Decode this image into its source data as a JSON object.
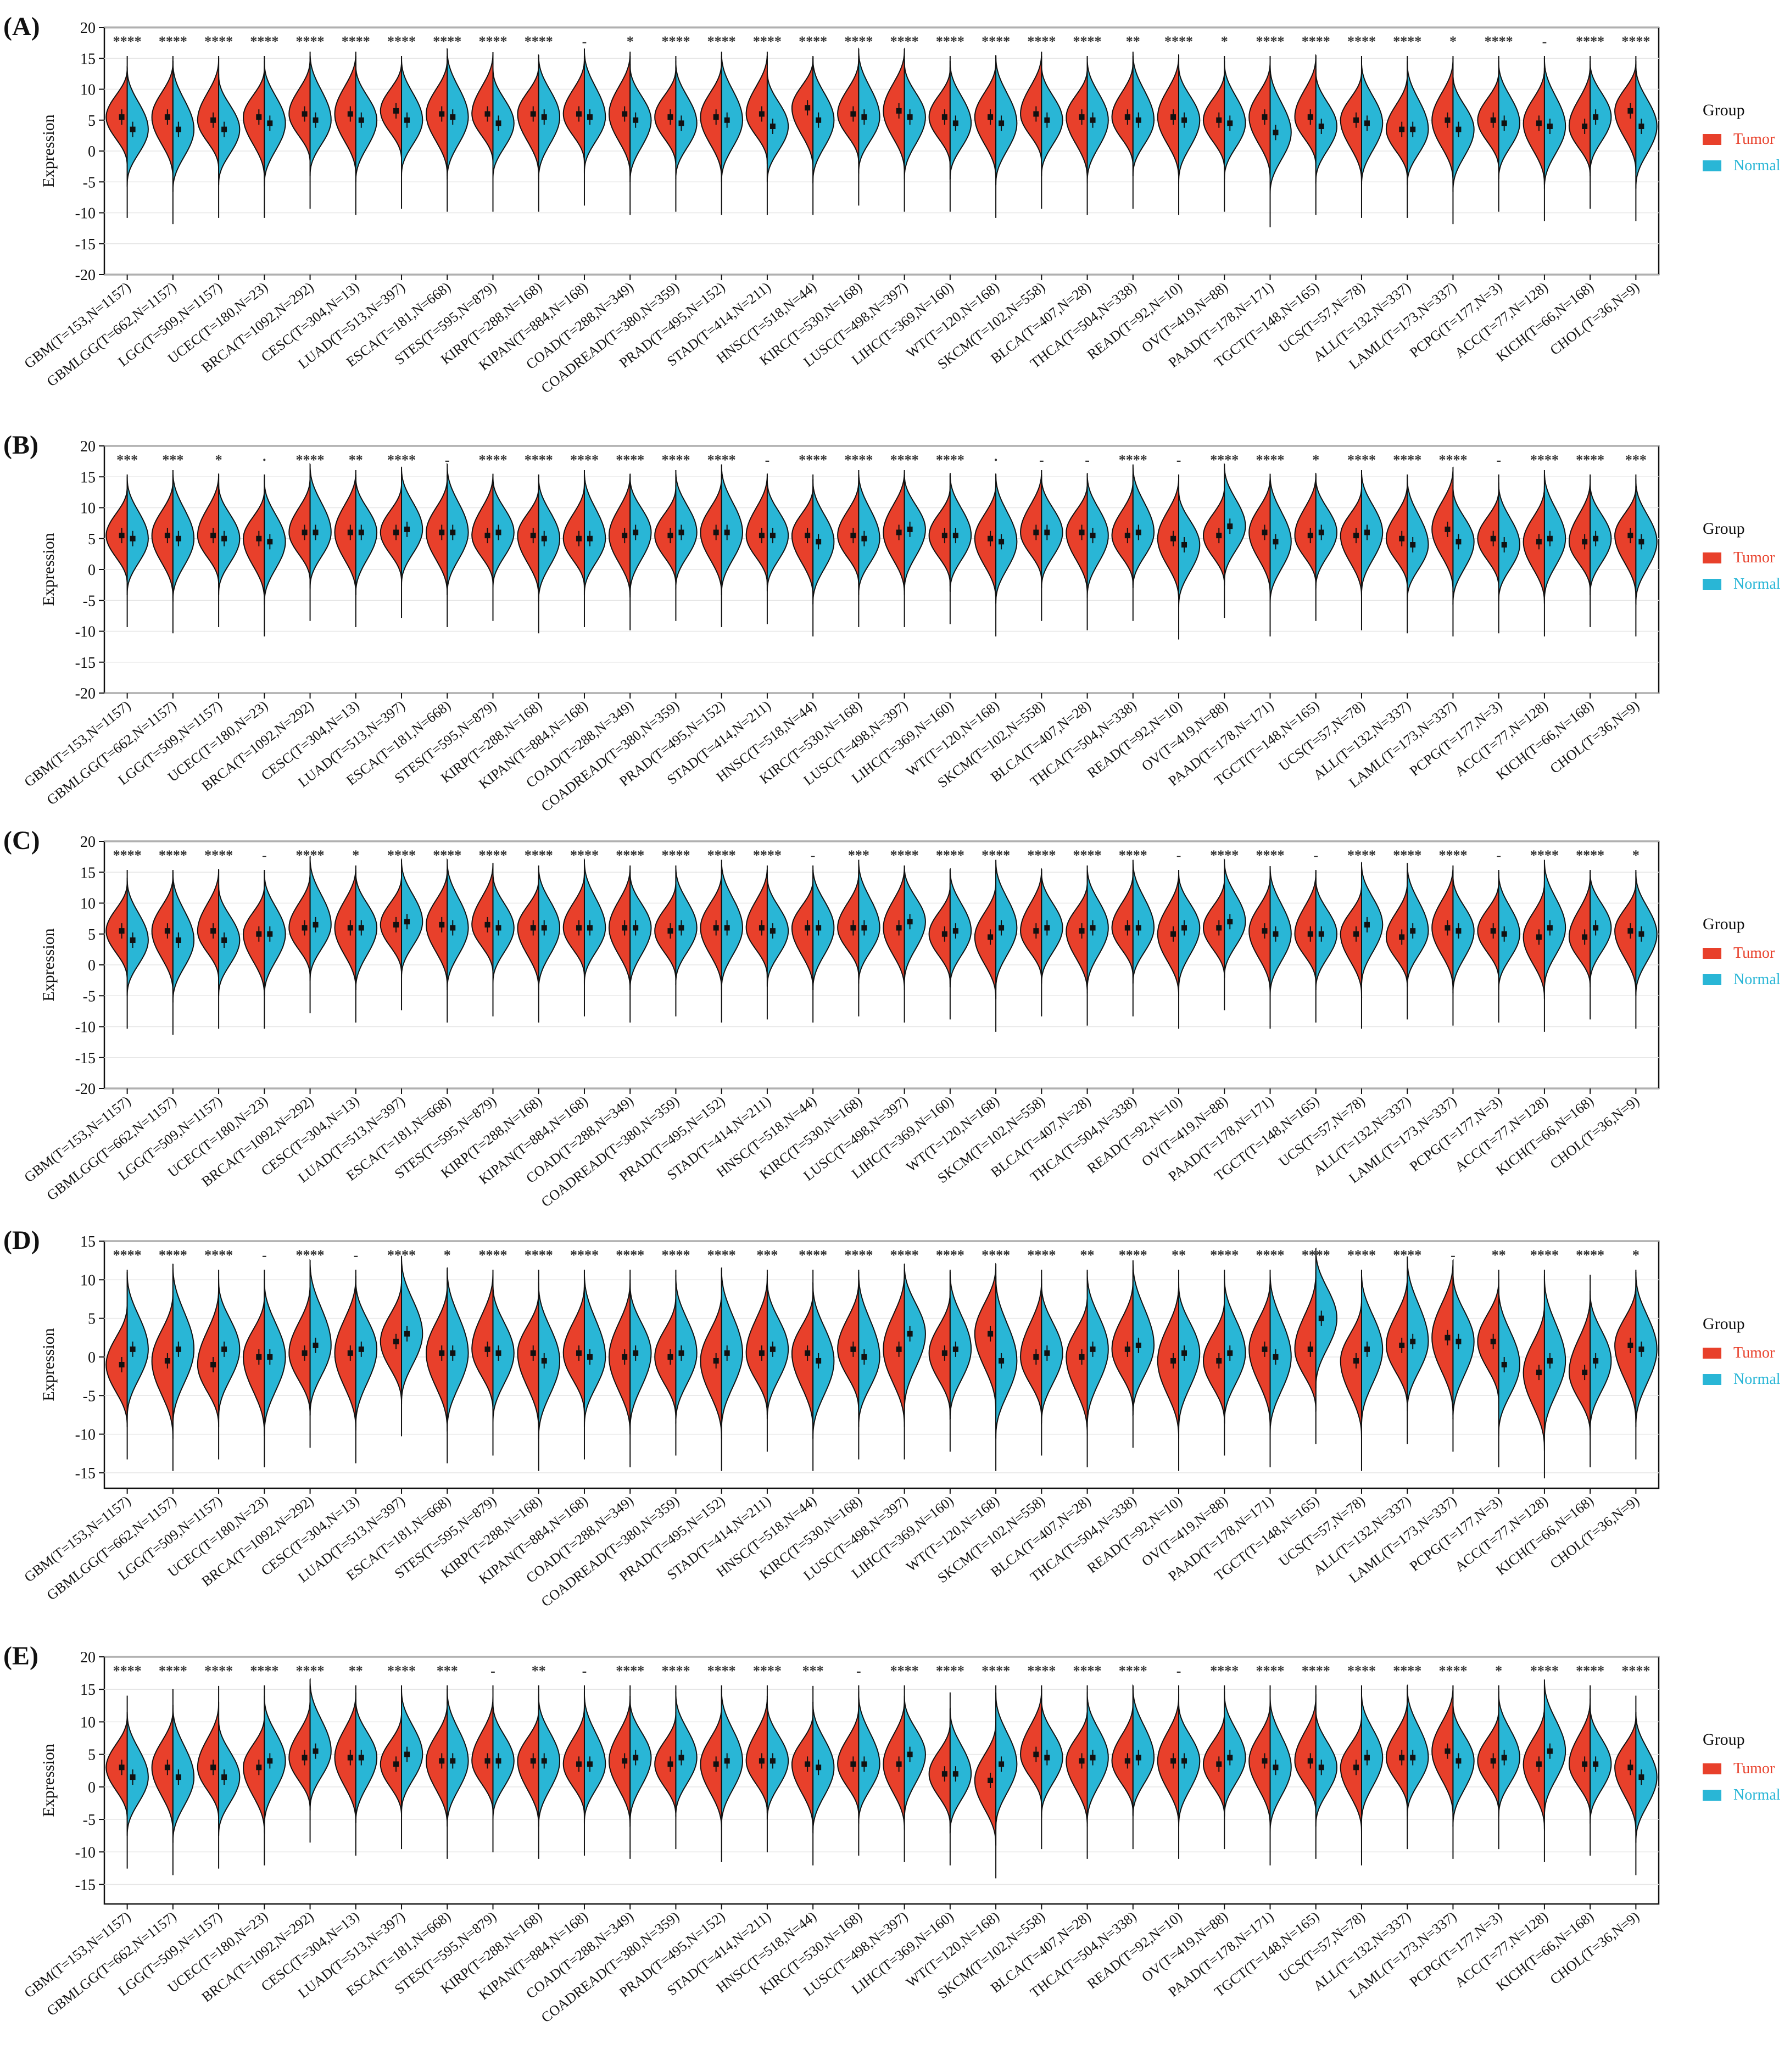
{
  "colors": {
    "tumor": "#E8402B",
    "normal": "#29B6D6",
    "frame": "#111111",
    "grid": "#e6e6e6",
    "text": "#111111"
  },
  "legend_title": "Group",
  "legend_labels": [
    "Tumor",
    "Normal"
  ],
  "categories": [
    "GBM(T=153,N=1157)",
    "GBMLGG(T=662,N=1157)",
    "LGG(T=509,N=1157)",
    "UCEC(T=180,N=23)",
    "BRCA(T=1092,N=292)",
    "CESC(T=304,N=13)",
    "LUAD(T=513,N=397)",
    "ESCA(T=181,N=668)",
    "STES(T=595,N=879)",
    "KIRP(T=288,N=168)",
    "KIPAN(T=884,N=168)",
    "COAD(T=288,N=349)",
    "COADREAD(T=380,N=359)",
    "PRAD(T=495,N=152)",
    "STAD(T=414,N=211)",
    "HNSC(T=518,N=44)",
    "KIRC(T=530,N=168)",
    "LUSC(T=498,N=397)",
    "LIHC(T=369,N=160)",
    "WT(T=120,N=168)",
    "SKCM(T=102,N=558)",
    "BLCA(T=407,N=28)",
    "THCA(T=504,N=338)",
    "READ(T=92,N=10)",
    "OV(T=419,N=88)",
    "PAAD(T=178,N=171)",
    "TGCT(T=148,N=165)",
    "UCS(T=57,N=78)",
    "ALL(T=132,N=337)",
    "LAML(T=173,N=337)",
    "PCPG(T=177,N=3)",
    "ACC(T=77,N=128)",
    "KICH(T=66,N=168)",
    "CHOL(T=36,N=9)"
  ],
  "panels": [
    {
      "label": "(A)",
      "chart_data": {
        "type": "split-violin",
        "ylabel": "Expression",
        "ylim": [
          -20,
          20
        ],
        "yticks": [
          -20,
          -15,
          -10,
          -5,
          0,
          5,
          10,
          15,
          20
        ],
        "series": [
          {
            "name": "Tumor",
            "medians": [
              5.5,
              5.5,
              5,
              5.5,
              6,
              6,
              6.5,
              6,
              6,
              6,
              6,
              6,
              5.5,
              5.5,
              6,
              7,
              6,
              6.5,
              5.5,
              5.5,
              6,
              5.5,
              5.5,
              5.5,
              5,
              5.5,
              5.5,
              5,
              3.5,
              5,
              5,
              4.5,
              4,
              6.5
            ]
          },
          {
            "name": "Normal",
            "medians": [
              3.5,
              3.5,
              3.5,
              4.5,
              5,
              5,
              5,
              5.5,
              4.5,
              5.5,
              5.5,
              5,
              4.5,
              5,
              4,
              5,
              5.5,
              5.5,
              4.5,
              4.5,
              5,
              5,
              5,
              5,
              4.5,
              3,
              4,
              4.5,
              3.5,
              3.5,
              4.5,
              4,
              5.5,
              4
            ]
          }
        ],
        "significance": [
          "****",
          "****",
          "****",
          "****",
          "****",
          "****",
          "****",
          "****",
          "****",
          "****",
          "-",
          "*",
          "****",
          "****",
          "****",
          "****",
          "****",
          "****",
          "****",
          "****",
          "****",
          "****",
          "**",
          "****",
          "*",
          "****",
          "****",
          "****",
          "****",
          "*",
          "****",
          "-",
          "****",
          "****"
        ]
      }
    },
    {
      "label": "(B)",
      "chart_data": {
        "type": "split-violin",
        "ylabel": "Expression",
        "ylim": [
          -20,
          20
        ],
        "yticks": [
          -20,
          -15,
          -10,
          -5,
          0,
          5,
          10,
          15,
          20
        ],
        "series": [
          {
            "name": "Tumor",
            "medians": [
              5.5,
              5.5,
              5.5,
              5,
              6,
              6,
              6,
              6,
              5.5,
              5.5,
              5,
              5.5,
              5.5,
              6,
              5.5,
              5.5,
              5.5,
              6,
              5.5,
              5,
              6,
              6,
              5.5,
              5,
              5.5,
              6,
              5.5,
              5.5,
              5,
              6.5,
              5,
              4.5,
              4.5,
              5.5
            ]
          },
          {
            "name": "Normal",
            "medians": [
              5,
              5,
              5,
              4.5,
              6,
              6,
              6.5,
              6,
              6,
              5,
              5,
              6,
              6,
              6,
              5.5,
              4.5,
              5,
              6.5,
              5.5,
              4.5,
              6,
              5.5,
              6,
              4,
              7,
              4.5,
              6,
              6,
              4,
              4.5,
              4,
              5,
              5,
              4.5
            ]
          }
        ],
        "significance": [
          "***",
          "***",
          "*",
          "·",
          "****",
          "**",
          "****",
          "-",
          "****",
          "****",
          "****",
          "****",
          "****",
          "****",
          "-",
          "****",
          "****",
          "****",
          "****",
          "·",
          "-",
          "-",
          "****",
          "-",
          "****",
          "****",
          "*",
          "****",
          "****",
          "****",
          "-",
          "****",
          "****",
          "***"
        ]
      }
    },
    {
      "label": "(C)",
      "chart_data": {
        "type": "split-violin",
        "ylabel": "Expression",
        "ylim": [
          -20,
          20
        ],
        "yticks": [
          -20,
          -15,
          -10,
          -5,
          0,
          5,
          10,
          15,
          20
        ],
        "series": [
          {
            "name": "Tumor",
            "medians": [
              5.5,
              5.5,
              5.5,
              5,
              6,
              6,
              6.5,
              6.5,
              6.5,
              6,
              6,
              6,
              5.5,
              6,
              6,
              6,
              6,
              6,
              5,
              4.5,
              5.5,
              5.5,
              6,
              5,
              6,
              5.5,
              5,
              5,
              4.5,
              6,
              5.5,
              4.5,
              4.5,
              5.5
            ]
          },
          {
            "name": "Normal",
            "medians": [
              4,
              4,
              4,
              5,
              6.5,
              6,
              7,
              6,
              6,
              6,
              6,
              6,
              6,
              6,
              5.5,
              6,
              6,
              7,
              5.5,
              6,
              6,
              6,
              6,
              6,
              7,
              5,
              5,
              6.5,
              5.5,
              5.5,
              5,
              6,
              6,
              5
            ]
          }
        ],
        "significance": [
          "****",
          "****",
          "****",
          "-",
          "****",
          "*",
          "****",
          "****",
          "****",
          "****",
          "****",
          "****",
          "****",
          "****",
          "****",
          "-",
          "***",
          "****",
          "****",
          "****",
          "****",
          "****",
          "****",
          "-",
          "****",
          "****",
          "-",
          "****",
          "****",
          "****",
          "-",
          "****",
          "****",
          "*"
        ]
      }
    },
    {
      "label": "(D)",
      "chart_data": {
        "type": "split-violin",
        "ylabel": "Expression",
        "ylim": [
          -17,
          15
        ],
        "yticks": [
          -15,
          -10,
          -5,
          0,
          5,
          10,
          15
        ],
        "series": [
          {
            "name": "Tumor",
            "medians": [
              -1,
              -0.5,
              -1,
              0,
              0.5,
              0.5,
              2,
              0.5,
              1,
              0.5,
              0.5,
              0,
              0,
              -0.5,
              0.5,
              0.5,
              1,
              1,
              0.5,
              3,
              0,
              0,
              1,
              -0.5,
              -0.5,
              1,
              1,
              -0.5,
              1.5,
              2.5,
              2,
              -2,
              -2,
              1.5
            ]
          },
          {
            "name": "Normal",
            "medians": [
              1,
              1,
              1,
              0,
              1.5,
              1,
              3,
              0.5,
              0.5,
              -0.5,
              0,
              0.5,
              0.5,
              0.5,
              1,
              -0.5,
              0,
              3,
              1,
              -0.5,
              0.5,
              1,
              1.5,
              0.5,
              0.5,
              0,
              5,
              1,
              2,
              2,
              -1,
              -0.5,
              -0.5,
              1
            ]
          }
        ],
        "significance": [
          "****",
          "****",
          "****",
          "-",
          "****",
          "-",
          "****",
          "*",
          "****",
          "****",
          "****",
          "****",
          "****",
          "****",
          "***",
          "****",
          "****",
          "****",
          "****",
          "****",
          "****",
          "**",
          "****",
          "**",
          "****",
          "****",
          "****",
          "****",
          "****",
          "-",
          "**",
          "****",
          "****",
          "*"
        ]
      }
    },
    {
      "label": "(E)",
      "chart_data": {
        "type": "split-violin",
        "ylabel": "Expression",
        "ylim": [
          -18,
          20
        ],
        "yticks": [
          -15,
          -10,
          -5,
          0,
          5,
          10,
          15,
          20
        ],
        "series": [
          {
            "name": "Tumor",
            "medians": [
              3,
              3,
              3,
              3,
              4.5,
              4.5,
              3.5,
              4,
              4,
              4,
              3.5,
              4,
              3.5,
              3.5,
              4,
              3.5,
              3.5,
              3.5,
              2,
              1,
              5,
              4,
              4,
              4,
              3.5,
              4,
              4,
              3,
              4.5,
              5.5,
              4,
              3.5,
              3.5,
              3
            ]
          },
          {
            "name": "Normal",
            "medians": [
              1.5,
              1.5,
              1.5,
              4,
              5.5,
              4.5,
              5,
              4,
              4,
              4,
              3.5,
              4.5,
              4.5,
              4,
              4,
              3,
              3.5,
              5,
              2,
              3.5,
              4.5,
              4.5,
              4.5,
              4,
              4.5,
              3,
              3,
              4.5,
              4.5,
              4,
              4.5,
              5.5,
              3.5,
              1.5
            ]
          }
        ],
        "significance": [
          "****",
          "****",
          "****",
          "****",
          "****",
          "**",
          "****",
          "***",
          "-",
          "**",
          "-",
          "****",
          "****",
          "****",
          "****",
          "***",
          "-",
          "****",
          "****",
          "****",
          "****",
          "****",
          "****",
          "-",
          "****",
          "****",
          "****",
          "****",
          "****",
          "****",
          "*",
          "****",
          "****",
          "****"
        ]
      }
    }
  ]
}
